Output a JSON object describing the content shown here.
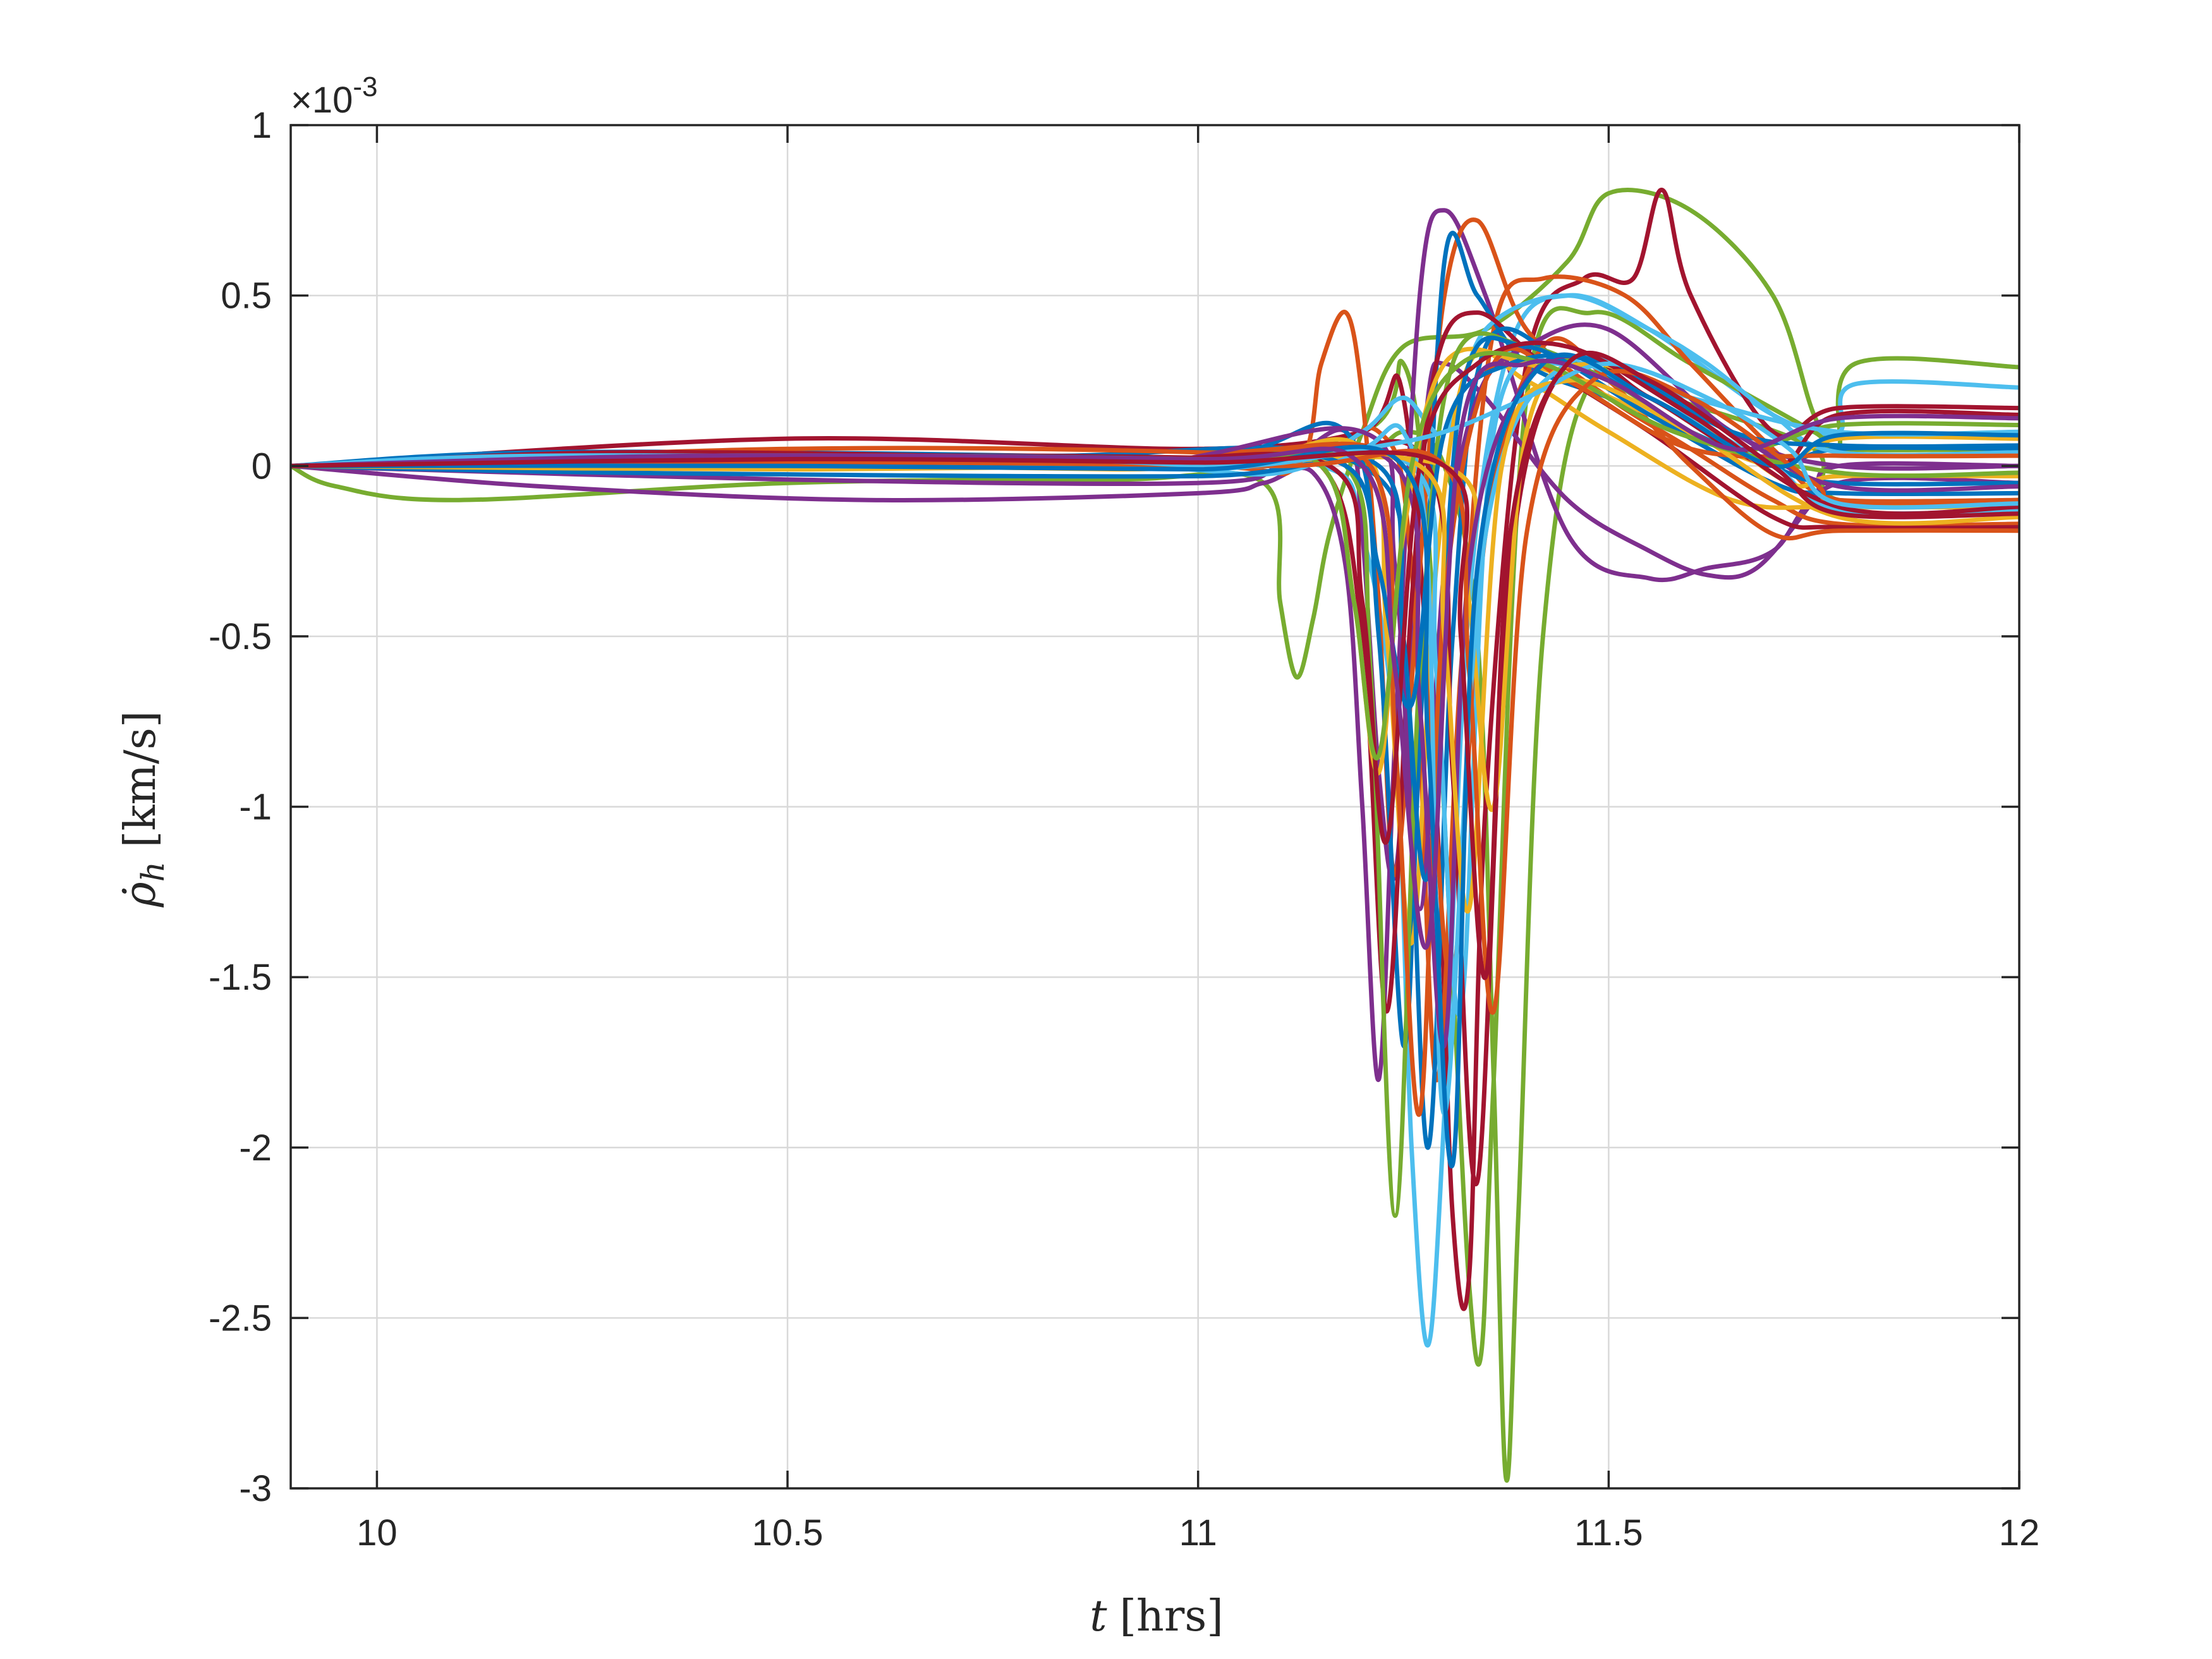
{
  "chart_data": {
    "type": "line",
    "title": "",
    "xlabel_symbol": "t",
    "xlabel_unit": "[hrs]",
    "ylabel_symbol": "ρ̇",
    "ylabel_sub": "h",
    "ylabel_unit": "[km/s]",
    "y_exponent_prefix": "×10",
    "y_exponent_power": "-3",
    "xlim": [
      9.895,
      12.0
    ],
    "ylim": [
      -3,
      1
    ],
    "xticks": [
      10,
      10.5,
      11,
      11.5,
      12
    ],
    "xtick_labels": [
      "10",
      "10.5",
      "11",
      "11.5",
      "12"
    ],
    "yticks": [
      1,
      0.5,
      0,
      -0.5,
      -1,
      -1.5,
      -2,
      -2.5,
      -3
    ],
    "ytick_labels": [
      "1",
      "0.5",
      "0",
      "-0.5",
      "-1",
      "-1.5",
      "-2",
      "-2.5",
      "-3"
    ],
    "grid": true,
    "legend": "none",
    "colors": [
      "#0072BD",
      "#D95319",
      "#EDB120",
      "#7E2F8E",
      "#77AC30",
      "#4DBEEE",
      "#A2142F"
    ],
    "num_series_approx": 100,
    "series": [
      {
        "color": "#77AC30",
        "x": [
          9.895,
          9.95,
          10.1,
          10.5,
          10.9,
          11.08,
          11.1,
          11.12,
          11.14,
          11.16,
          11.2,
          11.25,
          11.35,
          11.45,
          11.5,
          11.6,
          11.7,
          11.75,
          11.78,
          11.8,
          12.0
        ],
        "y": [
          0,
          -0.06,
          -0.1,
          -0.05,
          -0.04,
          -0.05,
          -0.4,
          -0.62,
          -0.45,
          -0.2,
          0.1,
          0.35,
          0.4,
          0.6,
          0.8,
          0.75,
          0.5,
          0.15,
          0.05,
          0.3,
          0.29
        ]
      },
      {
        "color": "#77AC30",
        "x": [
          9.895,
          10.2,
          10.8,
          11.15,
          11.2,
          11.25,
          11.3,
          11.34,
          11.36,
          11.375,
          11.39,
          11.42,
          11.48,
          11.6,
          11.75,
          11.78,
          12.0
        ],
        "y": [
          0,
          0.02,
          0.01,
          0.02,
          0.0,
          0.1,
          0.0,
          -0.5,
          -1.8,
          -2.97,
          -2.2,
          -0.5,
          0.25,
          0.18,
          0.05,
          -0.1,
          -0.1
        ]
      },
      {
        "color": "#4DBEEE",
        "x": [
          9.895,
          10.3,
          10.9,
          11.15,
          11.2,
          11.24,
          11.26,
          11.28,
          11.3,
          11.33,
          11.38,
          11.45,
          11.55,
          11.7,
          11.78,
          11.8,
          12.0
        ],
        "y": [
          0,
          0.01,
          0.02,
          0.0,
          -0.2,
          -0.8,
          -2.0,
          -2.58,
          -1.9,
          -0.4,
          0.35,
          0.5,
          0.4,
          0.15,
          0.1,
          0.24,
          0.23
        ]
      },
      {
        "color": "#77AC30",
        "x": [
          9.895,
          10.3,
          10.9,
          11.2,
          11.25,
          11.28,
          11.31,
          11.33,
          11.345,
          11.36,
          11.4,
          11.48,
          11.6,
          11.75,
          11.78,
          12.0
        ],
        "y": [
          0,
          0.02,
          0.0,
          0.1,
          0.3,
          -0.2,
          -1.5,
          -2.4,
          -2.6,
          -1.8,
          0.2,
          0.45,
          0.3,
          0.1,
          0.05,
          0.05
        ]
      },
      {
        "color": "#A2142F",
        "x": [
          9.895,
          10.5,
          11.0,
          11.2,
          11.25,
          11.29,
          11.31,
          11.33,
          11.35,
          11.4,
          11.47,
          11.53,
          11.565,
          11.6,
          11.7,
          11.78,
          12.0
        ],
        "y": [
          0,
          0.08,
          0.05,
          0.1,
          0.2,
          -1.0,
          -2.2,
          -2.38,
          -1.0,
          0.3,
          0.55,
          0.55,
          0.81,
          0.5,
          0.1,
          0.17,
          0.17
        ]
      },
      {
        "color": "#7E2F8E",
        "x": [
          9.895,
          10.2,
          10.6,
          11.0,
          11.08,
          11.14,
          11.18,
          11.2,
          11.22,
          11.24,
          11.27,
          11.3,
          11.35,
          11.45,
          11.55,
          11.62,
          11.7,
          11.78,
          12.0
        ],
        "y": [
          0,
          -0.06,
          -0.1,
          -0.08,
          -0.05,
          -0.02,
          -0.3,
          -1.0,
          -1.8,
          -0.8,
          0.5,
          0.75,
          0.5,
          -0.2,
          -0.33,
          -0.3,
          -0.25,
          -0.05,
          -0.05
        ]
      },
      {
        "color": "#7E2F8E",
        "x": [
          9.895,
          10.5,
          11.0,
          11.1,
          11.18,
          11.2,
          11.22,
          11.24,
          11.26,
          11.28,
          11.3,
          11.35,
          11.45,
          11.55,
          11.62,
          11.68,
          11.75,
          11.78,
          12.0
        ],
        "y": [
          0,
          -0.04,
          -0.05,
          0.0,
          0.1,
          -0.2,
          -0.9,
          -1.2,
          -0.5,
          0.2,
          0.3,
          0.2,
          -0.1,
          -0.25,
          -0.32,
          -0.3,
          -0.1,
          0.0,
          0.0
        ]
      },
      {
        "color": "#D95319",
        "x": [
          9.895,
          10.4,
          11.0,
          11.12,
          11.15,
          11.18,
          11.2,
          11.22,
          11.24,
          11.27,
          11.3,
          11.34,
          11.4,
          11.5,
          11.6,
          11.7,
          11.78,
          12.0
        ],
        "y": [
          0,
          0.03,
          0.0,
          0.0,
          0.3,
          0.45,
          0.2,
          -0.4,
          -1.2,
          -0.3,
          0.5,
          0.72,
          0.4,
          0.2,
          0.05,
          -0.1,
          -0.17,
          -0.17
        ]
      },
      {
        "color": "#D95319",
        "x": [
          9.895,
          10.6,
          11.1,
          11.22,
          11.26,
          11.29,
          11.32,
          11.36,
          11.42,
          11.52,
          11.6,
          11.7,
          11.78,
          12.0
        ],
        "y": [
          0,
          0.02,
          0.01,
          0.1,
          -0.3,
          -1.8,
          -0.6,
          0.4,
          0.55,
          0.5,
          0.3,
          0.05,
          -0.1,
          -0.1
        ]
      },
      {
        "color": "#0072BD",
        "x": [
          9.895,
          10.5,
          11.0,
          11.18,
          11.22,
          11.25,
          11.27,
          11.3,
          11.34,
          11.4,
          11.5,
          11.6,
          11.7,
          11.78,
          12.0
        ],
        "y": [
          0,
          0.03,
          0.02,
          0.1,
          -0.5,
          -1.7,
          -0.8,
          0.6,
          0.5,
          0.3,
          0.2,
          0.1,
          0.0,
          0.05,
          0.05
        ]
      },
      {
        "color": "#4DBEEE",
        "x": [
          9.895,
          10.3,
          10.9,
          11.1,
          11.2,
          11.25,
          11.3,
          11.35,
          11.45,
          11.55,
          11.62,
          11.7,
          11.78,
          12.0
        ],
        "y": [
          0,
          0.02,
          0.0,
          -0.02,
          0.1,
          0.2,
          0.1,
          0.4,
          0.5,
          0.4,
          0.3,
          0.15,
          0.04,
          0.04
        ]
      },
      {
        "color": "#EDB120",
        "x": [
          9.895,
          10.5,
          11.0,
          11.2,
          11.23,
          11.26,
          11.29,
          11.33,
          11.4,
          11.5,
          11.65,
          11.78,
          12.0
        ],
        "y": [
          0,
          0.01,
          0.0,
          0.05,
          -0.5,
          -1.4,
          -0.3,
          0.3,
          0.25,
          0.1,
          -0.1,
          -0.12,
          -0.12
        ]
      },
      {
        "color": "#A2142F",
        "x": [
          9.895,
          10.4,
          11.0,
          11.15,
          11.2,
          11.23,
          11.26,
          11.29,
          11.34,
          11.42,
          11.55,
          11.7,
          11.78,
          12.0
        ],
        "y": [
          0,
          0.02,
          0.01,
          0.0,
          -0.5,
          -1.6,
          -0.4,
          0.3,
          0.45,
          0.3,
          0.1,
          -0.15,
          -0.18,
          -0.18
        ]
      },
      {
        "color": "#0072BD",
        "x": [
          9.895,
          10.2,
          10.8,
          11.2,
          11.25,
          11.28,
          11.31,
          11.35,
          11.45,
          11.55,
          11.7,
          11.78,
          12.0
        ],
        "y": [
          0,
          0.04,
          0.03,
          0.0,
          -0.6,
          -2.0,
          -0.5,
          0.35,
          0.3,
          0.2,
          0.0,
          -0.05,
          -0.05
        ]
      },
      {
        "color": "#D95319",
        "x": [
          9.895,
          10.5,
          11.0,
          11.25,
          11.28,
          11.31,
          11.35,
          11.42,
          11.5,
          11.6,
          11.7,
          11.78,
          12.0
        ],
        "y": [
          0,
          0.05,
          0.04,
          0.0,
          -0.7,
          -1.5,
          -0.2,
          0.35,
          0.25,
          0.0,
          -0.2,
          -0.19,
          -0.19
        ]
      },
      {
        "color": "#7E2F8E",
        "x": [
          9.895,
          10.3,
          10.9,
          11.2,
          11.24,
          11.27,
          11.3,
          11.34,
          11.4,
          11.5,
          11.65,
          11.78,
          12.0
        ],
        "y": [
          0,
          0.01,
          0.0,
          0.1,
          -0.3,
          -1.3,
          -0.3,
          0.2,
          0.35,
          0.4,
          0.1,
          0.0,
          0.0
        ]
      },
      {
        "color": "#4DBEEE",
        "x": [
          9.895,
          10.5,
          11.0,
          11.26,
          11.29,
          11.32,
          11.36,
          11.45,
          11.55,
          11.7,
          11.78,
          12.0
        ],
        "y": [
          0,
          0.0,
          -0.01,
          0.0,
          -0.6,
          -1.6,
          0.1,
          0.3,
          0.2,
          0.0,
          -0.13,
          -0.13
        ]
      },
      {
        "color": "#EDB120",
        "x": [
          9.895,
          10.4,
          11.0,
          11.15,
          11.19,
          11.22,
          11.25,
          11.3,
          11.4,
          11.55,
          11.7,
          11.78,
          12.0
        ],
        "y": [
          0,
          0.03,
          0.02,
          0.0,
          -0.4,
          -0.9,
          -0.2,
          0.3,
          0.3,
          0.15,
          0.0,
          0.08,
          0.08
        ]
      },
      {
        "color": "#77AC30",
        "x": [
          9.895,
          10.4,
          11.0,
          11.18,
          11.21,
          11.24,
          11.27,
          11.31,
          11.4,
          11.5,
          11.65,
          11.78,
          12.0
        ],
        "y": [
          0,
          0.02,
          0.01,
          0.0,
          -0.6,
          -2.2,
          -0.6,
          0.3,
          0.35,
          0.25,
          0.05,
          0.12,
          0.12
        ]
      },
      {
        "color": "#A2142F",
        "x": [
          9.895,
          10.6,
          11.1,
          11.28,
          11.31,
          11.34,
          11.38,
          11.45,
          11.55,
          11.7,
          11.78,
          12.0
        ],
        "y": [
          0,
          0.03,
          0.02,
          0.0,
          -0.9,
          -2.1,
          -0.3,
          0.3,
          0.2,
          0.0,
          0.15,
          0.15
        ]
      },
      {
        "color": "#0072BD",
        "x": [
          9.895,
          10.3,
          11.0,
          11.22,
          11.25,
          11.28,
          11.32,
          11.4,
          11.55,
          11.7,
          11.78,
          12.0
        ],
        "y": [
          0,
          -0.02,
          -0.03,
          0.0,
          -0.5,
          -1.2,
          0.2,
          0.35,
          0.15,
          -0.05,
          -0.08,
          -0.08
        ]
      },
      {
        "color": "#D95319",
        "x": [
          9.895,
          10.5,
          11.0,
          11.21,
          11.24,
          11.27,
          11.3,
          11.36,
          11.45,
          11.6,
          11.78,
          12.0
        ],
        "y": [
          0,
          0.0,
          0.01,
          0.0,
          -0.8,
          -1.9,
          -0.4,
          0.3,
          0.25,
          0.05,
          0.03,
          0.03
        ]
      },
      {
        "color": "#EDB120",
        "x": [
          9.895,
          10.3,
          10.9,
          11.3,
          11.33,
          11.36,
          11.4,
          11.48,
          11.6,
          11.72,
          11.78,
          12.0
        ],
        "y": [
          0,
          0.01,
          -0.01,
          0.0,
          -0.4,
          -1.0,
          0.1,
          0.3,
          0.15,
          -0.05,
          -0.03,
          -0.03
        ]
      },
      {
        "color": "#4DBEEE",
        "x": [
          9.895,
          10.6,
          11.1,
          11.2,
          11.25,
          11.28,
          11.3,
          11.35,
          11.45,
          11.6,
          11.78,
          12.0
        ],
        "y": [
          0,
          0.02,
          0.0,
          0.05,
          0.1,
          -0.3,
          -1.9,
          -0.2,
          0.3,
          0.2,
          0.1,
          0.1
        ]
      },
      {
        "color": "#7E2F8E",
        "x": [
          9.895,
          10.4,
          11.0,
          11.24,
          11.27,
          11.3,
          11.33,
          11.4,
          11.5,
          11.65,
          11.78,
          12.0
        ],
        "y": [
          0,
          0.02,
          0.01,
          0.0,
          -0.7,
          -1.7,
          -0.3,
          0.25,
          0.3,
          0.1,
          -0.06,
          -0.06
        ]
      },
      {
        "color": "#0072BD",
        "x": [
          9.895,
          10.5,
          11.0,
          11.18,
          11.22,
          11.26,
          11.3,
          11.38,
          11.5,
          11.65,
          11.78,
          12.0
        ],
        "y": [
          0,
          0.03,
          0.02,
          0.0,
          -0.3,
          -0.7,
          0.1,
          0.3,
          0.3,
          0.1,
          0.06,
          0.06
        ]
      },
      {
        "color": "#A2142F",
        "x": [
          9.895,
          10.3,
          10.9,
          11.16,
          11.2,
          11.23,
          11.27,
          11.34,
          11.45,
          11.6,
          11.78,
          12.0
        ],
        "y": [
          0,
          0.04,
          0.02,
          0.0,
          -0.4,
          -1.1,
          0.0,
          0.3,
          0.35,
          0.15,
          -0.12,
          -0.12
        ]
      },
      {
        "color": "#EDB120",
        "x": [
          9.895,
          10.5,
          11.0,
          11.27,
          11.3,
          11.33,
          11.37,
          11.45,
          11.6,
          11.78,
          12.0
        ],
        "y": [
          0,
          -0.01,
          0.0,
          0.0,
          -0.5,
          -1.3,
          0.0,
          0.25,
          0.1,
          -0.15,
          -0.15
        ]
      },
      {
        "color": "#77AC30",
        "x": [
          9.895,
          10.4,
          11.0,
          11.15,
          11.19,
          11.22,
          11.26,
          11.32,
          11.42,
          11.58,
          11.78,
          12.0
        ],
        "y": [
          0,
          0.03,
          0.02,
          0.0,
          -0.4,
          -0.85,
          0.0,
          0.3,
          0.3,
          0.1,
          -0.02,
          -0.02
        ]
      },
      {
        "color": "#D95319",
        "x": [
          9.895,
          10.6,
          11.1,
          11.3,
          11.33,
          11.36,
          11.4,
          11.48,
          11.6,
          11.75,
          11.78,
          12.0
        ],
        "y": [
          0,
          0.01,
          0.0,
          0.0,
          -0.6,
          -1.6,
          -0.2,
          0.25,
          0.2,
          -0.05,
          -0.1,
          -0.1
        ]
      },
      {
        "color": "#4DBEEE",
        "x": [
          9.895,
          10.2,
          10.8,
          11.05,
          11.2,
          11.3,
          11.4,
          11.5,
          11.62,
          11.72,
          11.78,
          12.0
        ],
        "y": [
          0,
          0.03,
          0.02,
          0.0,
          0.05,
          0.1,
          0.2,
          0.3,
          0.2,
          0.05,
          -0.11,
          -0.11
        ]
      },
      {
        "color": "#0072BD",
        "x": [
          9.895,
          10.5,
          11.0,
          11.25,
          11.28,
          11.31,
          11.34,
          11.42,
          11.55,
          11.7,
          11.78,
          12.0
        ],
        "y": [
          0,
          0.0,
          -0.01,
          0.0,
          -0.8,
          -2.05,
          -0.3,
          0.3,
          0.2,
          0.0,
          0.09,
          0.09
        ]
      },
      {
        "color": "#7E2F8E",
        "x": [
          9.895,
          10.4,
          11.0,
          11.2,
          11.24,
          11.28,
          11.32,
          11.4,
          11.5,
          11.65,
          11.78,
          12.0
        ],
        "y": [
          0,
          0.03,
          0.02,
          0.0,
          -0.6,
          -1.4,
          0.1,
          0.3,
          0.25,
          0.05,
          0.14,
          0.14
        ]
      },
      {
        "color": "#A2142F",
        "x": [
          9.895,
          10.5,
          11.0,
          11.3,
          11.32,
          11.35,
          11.38,
          11.45,
          11.55,
          11.7,
          11.78,
          12.0
        ],
        "y": [
          0,
          0.02,
          0.01,
          0.0,
          -0.5,
          -1.5,
          -0.2,
          0.3,
          0.25,
          0.0,
          -0.14,
          -0.14
        ]
      }
    ]
  }
}
